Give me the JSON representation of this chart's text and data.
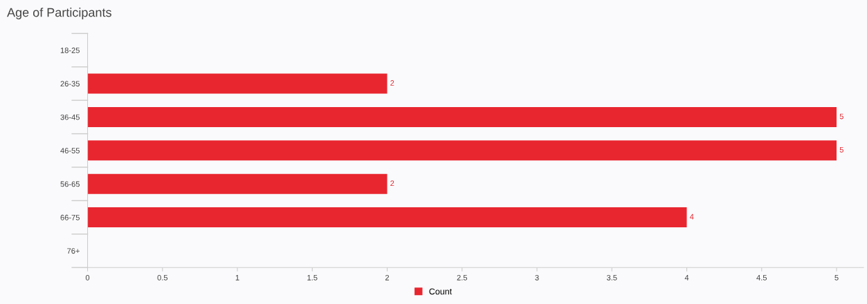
{
  "chart_data": {
    "type": "bar",
    "orientation": "horizontal",
    "title": "Age of Participants",
    "categories": [
      "18-25",
      "26-35",
      "36-45",
      "46-55",
      "56-65",
      "66-75",
      "76+"
    ],
    "series": [
      {
        "name": "Count",
        "color": "#e8262f",
        "values": [
          null,
          2,
          5,
          5,
          2,
          4,
          null
        ]
      }
    ],
    "xlim": [
      0,
      5.18
    ],
    "xticks": [
      0,
      0.5,
      1,
      1.5,
      2,
      2.5,
      3,
      3.5,
      4,
      4.5,
      5
    ],
    "data_labels": true,
    "grid": false,
    "legend": "bottom"
  }
}
